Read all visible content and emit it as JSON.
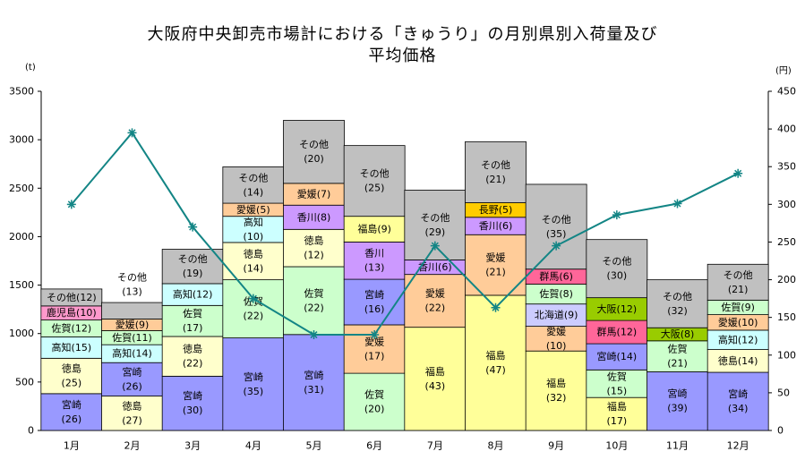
{
  "title_line1": "大阪府中央卸売市場計における「きゅうり」の月別県別入荷量及び",
  "title_line2": "平均価格",
  "unit_left": "(t)",
  "unit_right": "(円)",
  "colors": {
    "宮崎": "#9999ff",
    "徳島": "#ffffcc",
    "高知": "#ccffff",
    "佐賀": "#ccffcc",
    "鹿児島": "#ff99cc",
    "その他": "#c0c0c0",
    "愛媛": "#ffcc99",
    "香川": "#cc99ff",
    "福島": "#ffff99",
    "長野": "#ffcc00",
    "群馬": "#ff6699",
    "北海道": "#ccccff",
    "大阪": "#99cc00",
    "price_line": "#138585"
  },
  "chart_data": {
    "type": "bar",
    "stacked": true,
    "categories": [
      "1月",
      "2月",
      "3月",
      "4月",
      "5月",
      "6月",
      "7月",
      "8月",
      "9月",
      "10月",
      "11月",
      "12月"
    ],
    "y_left": {
      "min": 0,
      "max": 3500,
      "ticks": [
        0,
        500,
        1000,
        1500,
        2000,
        2500,
        3000,
        3500
      ],
      "unit": "(t)"
    },
    "y_right": {
      "min": 0,
      "max": 450,
      "ticks": [
        0,
        50,
        100,
        150,
        200,
        250,
        300,
        350,
        400,
        450
      ],
      "unit": "(円)"
    },
    "grid": false,
    "stacks": [
      [
        {
          "pref": "宮崎",
          "label": "宮崎",
          "pct": "(26)",
          "value": 380
        },
        {
          "pref": "徳島",
          "label": "徳島",
          "pct": "(25)",
          "value": 365
        },
        {
          "pref": "高知",
          "label": "高知(15)",
          "value": 220
        },
        {
          "pref": "佐賀",
          "label": "佐賀(12)",
          "value": 175
        },
        {
          "pref": "鹿児島",
          "label": "鹿児島(10)",
          "value": 145
        },
        {
          "pref": "その他",
          "label": "その他(12)",
          "value": 175
        }
      ],
      [
        {
          "pref": "徳島",
          "label": "徳島",
          "pct": "(27)",
          "value": 355
        },
        {
          "pref": "宮崎",
          "label": "宮崎",
          "pct": "(26)",
          "value": 345
        },
        {
          "pref": "高知",
          "label": "高知(14)",
          "value": 185
        },
        {
          "pref": "佐賀",
          "label": "佐賀(11)",
          "value": 145
        },
        {
          "pref": "愛媛",
          "label": "愛媛(9)",
          "value": 120
        },
        {
          "pref": "その他",
          "label": "その他",
          "pct": "(13)",
          "value": 170,
          "label_above": true
        }
      ],
      [
        {
          "pref": "宮崎",
          "label": "宮崎",
          "pct": "(30)",
          "value": 560
        },
        {
          "pref": "徳島",
          "label": "徳島",
          "pct": "(22)",
          "value": 410
        },
        {
          "pref": "佐賀",
          "label": "佐賀",
          "pct": "(17)",
          "value": 320
        },
        {
          "pref": "高知",
          "label": "高知(12)",
          "value": 225
        },
        {
          "pref": "その他",
          "label": "その他",
          "pct": "(19)",
          "value": 355
        }
      ],
      [
        {
          "pref": "宮崎",
          "label": "宮崎",
          "pct": "(35)",
          "value": 955
        },
        {
          "pref": "佐賀",
          "label": "佐賀",
          "pct": "(22)",
          "value": 600
        },
        {
          "pref": "徳島",
          "label": "徳島",
          "pct": "(14)",
          "value": 385
        },
        {
          "pref": "高知",
          "label": "高知",
          "pct": "(10)",
          "value": 270
        },
        {
          "pref": "愛媛",
          "label": "愛媛(5)",
          "value": 135
        },
        {
          "pref": "その他",
          "label": "その他",
          "pct": "(14)",
          "value": 375
        }
      ],
      [
        {
          "pref": "宮崎",
          "label": "宮崎",
          "pct": "(31)",
          "value": 990
        },
        {
          "pref": "佐賀",
          "label": "佐賀",
          "pct": "(22)",
          "value": 700
        },
        {
          "pref": "徳島",
          "label": "徳島",
          "pct": "(12)",
          "value": 385
        },
        {
          "pref": "香川",
          "label": "香川(8)",
          "value": 250
        },
        {
          "pref": "愛媛",
          "label": "愛媛(7)",
          "value": 225
        },
        {
          "pref": "その他",
          "label": "その他",
          "pct": "(20)",
          "value": 650
        }
      ],
      [
        {
          "pref": "佐賀",
          "label": "佐賀",
          "pct": "(20)",
          "value": 590
        },
        {
          "pref": "愛媛",
          "label": "愛媛",
          "pct": "(17)",
          "value": 500
        },
        {
          "pref": "宮崎",
          "label": "宮崎",
          "pct": "(16)",
          "value": 470
        },
        {
          "pref": "香川",
          "label": "香川",
          "pct": "(13)",
          "value": 385
        },
        {
          "pref": "福島",
          "label": "福島(9)",
          "value": 265
        },
        {
          "pref": "その他",
          "label": "その他",
          "pct": "(25)",
          "value": 730
        }
      ],
      [
        {
          "pref": "福島",
          "label": "福島",
          "pct": "(43)",
          "value": 1065
        },
        {
          "pref": "愛媛",
          "label": "愛媛",
          "pct": "(22)",
          "value": 545
        },
        {
          "pref": "香川",
          "label": "香川(6)",
          "value": 150
        },
        {
          "pref": "その他",
          "label": "その他",
          "pct": "(29)",
          "value": 720
        }
      ],
      [
        {
          "pref": "福島",
          "label": "福島",
          "pct": "(47)",
          "value": 1395
        },
        {
          "pref": "愛媛",
          "label": "愛媛",
          "pct": "(21)",
          "value": 625
        },
        {
          "pref": "香川",
          "label": "香川(6)",
          "value": 180
        },
        {
          "pref": "長野",
          "label": "長野(5)",
          "value": 150
        },
        {
          "pref": "その他",
          "label": "その他",
          "pct": "(21)",
          "value": 630
        }
      ],
      [
        {
          "pref": "福島",
          "label": "福島",
          "pct": "(32)",
          "value": 820
        },
        {
          "pref": "愛媛",
          "label": "愛媛",
          "pct": "(10)",
          "value": 255
        },
        {
          "pref": "北海道",
          "label": "北海道(9)",
          "value": 230
        },
        {
          "pref": "佐賀",
          "label": "佐賀(8)",
          "value": 205
        },
        {
          "pref": "群馬",
          "label": "群馬(6)",
          "value": 155
        },
        {
          "pref": "その他",
          "label": "その他",
          "pct": "(35)",
          "value": 875
        }
      ],
      [
        {
          "pref": "福島",
          "label": "福島",
          "pct": "(17)",
          "value": 340
        },
        {
          "pref": "佐賀",
          "label": "佐賀",
          "pct": "(15)",
          "value": 285
        },
        {
          "pref": "宮崎",
          "label": "宮崎(14)",
          "value": 270
        },
        {
          "pref": "群馬",
          "label": "群馬(12)",
          "value": 240
        },
        {
          "pref": "大阪",
          "label": "大阪(12)",
          "value": 235
        },
        {
          "pref": "その他",
          "label": "その他",
          "pct": "(30)",
          "value": 600
        }
      ],
      [
        {
          "pref": "宮崎",
          "label": "宮崎",
          "pct": "(39)",
          "value": 605
        },
        {
          "pref": "佐賀",
          "label": "佐賀",
          "pct": "(21)",
          "value": 320
        },
        {
          "pref": "大阪",
          "label": "大阪(8)",
          "value": 135
        },
        {
          "pref": "その他",
          "label": "その他",
          "pct": "(32)",
          "value": 495
        }
      ],
      [
        {
          "pref": "宮崎",
          "label": "宮崎",
          "pct": "(34)",
          "value": 600
        },
        {
          "pref": "徳島",
          "label": "徳島(14)",
          "value": 235
        },
        {
          "pref": "高知",
          "label": "高知(12)",
          "value": 200
        },
        {
          "pref": "愛媛",
          "label": "愛媛(10)",
          "value": 160
        },
        {
          "pref": "佐賀",
          "label": "佐賀(9)",
          "value": 150
        },
        {
          "pref": "その他",
          "label": "その他",
          "pct": "(21)",
          "value": 370
        }
      ]
    ],
    "price": [
      300,
      395,
      270,
      175,
      127,
      127,
      245,
      163,
      245,
      286,
      301,
      341
    ]
  }
}
